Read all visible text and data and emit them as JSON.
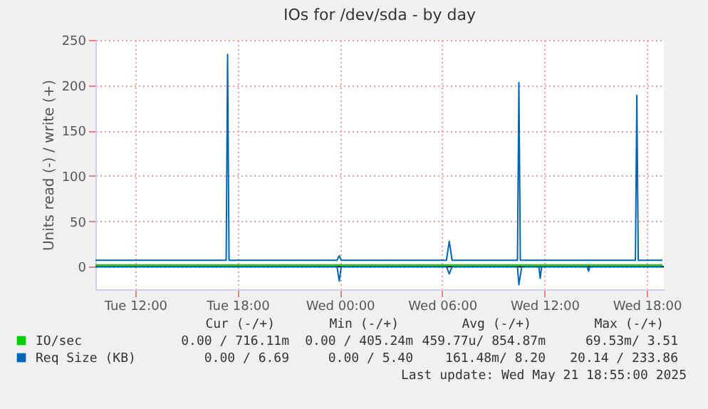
{
  "chart_data": {
    "type": "line",
    "title": "IOs for /dev/sda - by day",
    "ylabel": "Units read (-) / write (+)",
    "xlim": [
      "2025-05-20T09:40",
      "2025-05-21T19:00"
    ],
    "xticks": [
      {
        "value": "2025-05-20T12:00",
        "label": "Tue 12:00"
      },
      {
        "value": "2025-05-20T18:00",
        "label": "Tue 18:00"
      },
      {
        "value": "2025-05-21T00:00",
        "label": "Wed 00:00"
      },
      {
        "value": "2025-05-21T06:00",
        "label": "Wed 06:00"
      },
      {
        "value": "2025-05-21T12:00",
        "label": "Wed 12:00"
      },
      {
        "value": "2025-05-21T18:00",
        "label": "Wed 18:00"
      }
    ],
    "ylim": [
      -25,
      250
    ],
    "yticks": [
      0,
      50,
      100,
      150,
      200,
      250
    ],
    "grid": true,
    "legend": "bottom",
    "marker": "none",
    "line_style": "solid",
    "ref_lines": [
      {
        "axis": "y",
        "value": 0,
        "color": "#000000"
      }
    ],
    "series": [
      {
        "name": "IO/sec",
        "color": "#00cc00",
        "x": [
          "2025-05-20T09:40",
          "2025-05-21T18:55"
        ],
        "values": [
          2,
          2
        ]
      },
      {
        "name": "Req Size (KB)",
        "color": "#0066b3",
        "x": [
          "2025-05-20T09:40",
          "2025-05-20T17:20",
          "2025-05-20T17:25",
          "2025-05-20T17:30",
          "2025-05-20T23:50",
          "2025-05-20T23:58",
          "2025-05-21T00:05",
          "2025-05-21T06:15",
          "2025-05-21T06:25",
          "2025-05-21T06:35",
          "2025-05-21T10:25",
          "2025-05-21T10:30",
          "2025-05-21T10:35",
          "2025-05-21T17:20",
          "2025-05-21T17:25",
          "2025-05-21T17:30",
          "2025-05-21T18:55"
        ],
        "values": [
          7,
          7,
          234,
          7,
          7,
          12,
          7,
          7,
          28,
          7,
          7,
          203,
          7,
          7,
          189,
          7,
          7
        ]
      },
      {
        "color": "#0066b3",
        "x": [
          "2025-05-20T09:40",
          "2025-05-20T23:50",
          "2025-05-20T23:58",
          "2025-05-21T00:05",
          "2025-05-21T06:15",
          "2025-05-21T06:25",
          "2025-05-21T06:35",
          "2025-05-21T10:25",
          "2025-05-21T10:30",
          "2025-05-21T10:40",
          "2025-05-21T11:40",
          "2025-05-21T11:45",
          "2025-05-21T11:50",
          "2025-05-21T14:30",
          "2025-05-21T14:35",
          "2025-05-21T14:40",
          "2025-05-21T18:55"
        ],
        "values": [
          0,
          0,
          -16,
          0,
          0,
          -8,
          0,
          0,
          -20,
          0,
          0,
          -13,
          0,
          0,
          -5,
          0,
          0
        ]
      }
    ],
    "annotations": [
      "Cur (-/+)",
      "Min (-/+)",
      "Avg (-/+)",
      "Max (-/+)",
      "0.00 / 716.11m",
      "0.00 / 405.24m",
      "459.77u/ 854.87m",
      "69.53m/ 3.51",
      "0.00 / 6.69",
      "0.00 / 5.40",
      "161.48m/ 8.20",
      "20.14 / 233.86",
      "Last update: Wed May 21 18:55:00 2025"
    ]
  }
}
